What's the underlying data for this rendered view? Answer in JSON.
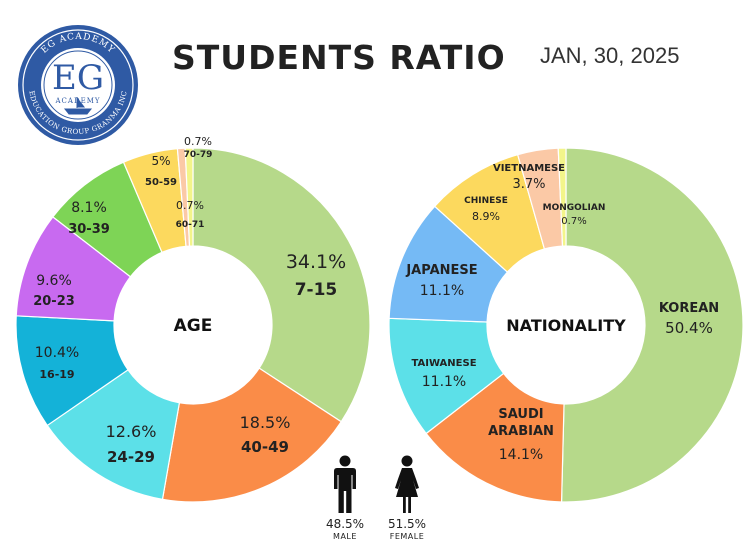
{
  "title": "STUDENTS RATIO",
  "date": "JAN, 30, 2025",
  "logo": {
    "initials": "EG",
    "top_text": "EG ACADEMY",
    "inner_text": "ACADEMY",
    "bottom_text": "EDUCATION GROUP GRANMA INC"
  },
  "chart_data": [
    {
      "type": "pie",
      "center_label": "AGE",
      "slices": [
        {
          "label": "7-15",
          "value": 34.1,
          "pct_label": "34.1%",
          "color": "#b6d98a"
        },
        {
          "label": "40-49",
          "value": 18.5,
          "pct_label": "18.5%",
          "color": "#fa8c48"
        },
        {
          "label": "24-29",
          "value": 12.6,
          "pct_label": "12.6%",
          "color": "#5ce0e8"
        },
        {
          "label": "16-19",
          "value": 10.4,
          "pct_label": "10.4%",
          "color": "#14b2d8"
        },
        {
          "label": "20-23",
          "value": 9.6,
          "pct_label": "9.6%",
          "color": "#c86af0"
        },
        {
          "label": "30-39",
          "value": 8.1,
          "pct_label": "8.1%",
          "color": "#7ed456"
        },
        {
          "label": "50-59",
          "value": 5.0,
          "pct_label": "5%",
          "color": "#fcd95e"
        },
        {
          "label": "60-71",
          "value": 0.7,
          "pct_label": "0.7%",
          "color": "#fbc9a6"
        },
        {
          "label": "70-79",
          "value": 0.7,
          "pct_label": "0.7%",
          "color": "#f3f58a"
        }
      ]
    },
    {
      "type": "pie",
      "center_label": "NATIONALITY",
      "slices": [
        {
          "label": "KOREAN",
          "value": 50.4,
          "pct_label": "50.4%",
          "color": "#b6d98a"
        },
        {
          "label": "SAUDI ARABIAN",
          "value": 14.1,
          "pct_label": "14.1%",
          "color": "#fa8c48"
        },
        {
          "label": "TAIWANESE",
          "value": 11.1,
          "pct_label": "11.1%",
          "color": "#5ce0e8"
        },
        {
          "label": "JAPANESE",
          "value": 11.1,
          "pct_label": "11.1%",
          "color": "#75baf5"
        },
        {
          "label": "CHINESE",
          "value": 8.9,
          "pct_label": "8.9%",
          "color": "#fcd95e"
        },
        {
          "label": "VIETNAMESE",
          "value": 3.7,
          "pct_label": "3.7%",
          "color": "#fbc9a6"
        },
        {
          "label": "MONGOLIAN",
          "value": 0.7,
          "pct_label": "0.7%",
          "color": "#f3f58a"
        }
      ]
    }
  ],
  "gender": {
    "male": {
      "pct": "48.5%",
      "label": "MALE"
    },
    "female": {
      "pct": "51.5%",
      "label": "FEMALE"
    }
  }
}
